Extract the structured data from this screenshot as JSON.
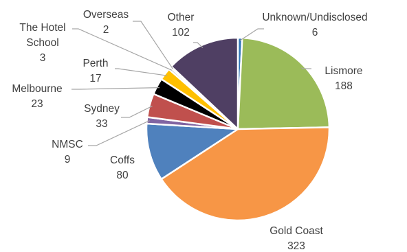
{
  "chart_data": {
    "type": "pie",
    "title": "",
    "slices": [
      {
        "label": "Unknown/Undisclosed",
        "value": 6,
        "color": "#2e75b6"
      },
      {
        "label": "Lismore",
        "value": 188,
        "color": "#9bbb59"
      },
      {
        "label": "Gold Coast",
        "value": 323,
        "color": "#f79646"
      },
      {
        "label": "Coffs",
        "value": 80,
        "color": "#4f81bd"
      },
      {
        "label": "NMSC",
        "value": 9,
        "color": "#8064a2"
      },
      {
        "label": "Sydney",
        "value": 33,
        "color": "#c0504d"
      },
      {
        "label": "Melbourne",
        "value": 23,
        "color": "#000000"
      },
      {
        "label": "Perth",
        "value": 17,
        "color": "#ffc000"
      },
      {
        "label": "The Hotel School",
        "value": 3,
        "color": "#a5a5a5"
      },
      {
        "label": "Overseas",
        "value": 2,
        "color": "#7f7f7f"
      },
      {
        "label": "Other",
        "value": 102,
        "color": "#4f3f63"
      }
    ],
    "legend": "none"
  }
}
